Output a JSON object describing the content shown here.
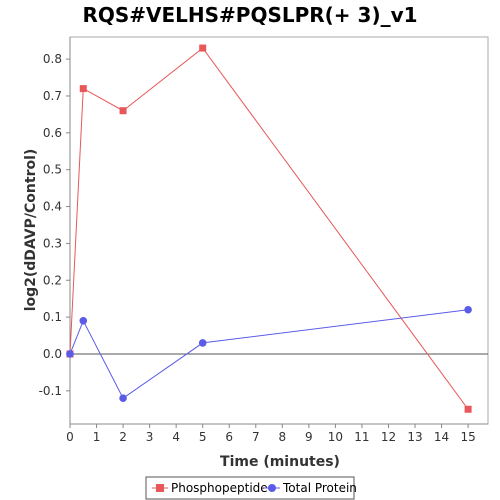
{
  "chart_data": {
    "type": "line",
    "title": "RQS#VELHS#PQSLPR(+ 3)_v1",
    "xlabel": "Time (minutes)",
    "ylabel": "log2(dDAVP/Control)",
    "xlim": [
      0,
      15.75
    ],
    "ylim": [
      -0.19,
      0.86
    ],
    "x_ticks": [
      0,
      1,
      2,
      3,
      4,
      5,
      6,
      7,
      8,
      9,
      10,
      11,
      12,
      13,
      14,
      15
    ],
    "y_ticks": [
      -0.1,
      0.0,
      0.1,
      0.2,
      0.3,
      0.4,
      0.5,
      0.6,
      0.7,
      0.8
    ],
    "y_tick_labels": [
      "-0.1",
      "0.0",
      "0.1",
      "0.2",
      "0.3",
      "0.4",
      "0.5",
      "0.6",
      "0.7",
      "0.8"
    ],
    "grid": false,
    "zero_line": true,
    "legend_position": "bottom",
    "series": [
      {
        "name": "Phosphopeptide",
        "color": "#e8575a",
        "marker": "square",
        "x": [
          0,
          0.5,
          2,
          5,
          15
        ],
        "y": [
          0.0,
          0.72,
          0.66,
          0.83,
          -0.15
        ]
      },
      {
        "name": "Total Protein",
        "color": "#5b5be8",
        "marker": "circle",
        "x": [
          0,
          0.5,
          2,
          5,
          15
        ],
        "y": [
          0.0,
          0.09,
          -0.12,
          0.03,
          0.12
        ]
      }
    ]
  }
}
